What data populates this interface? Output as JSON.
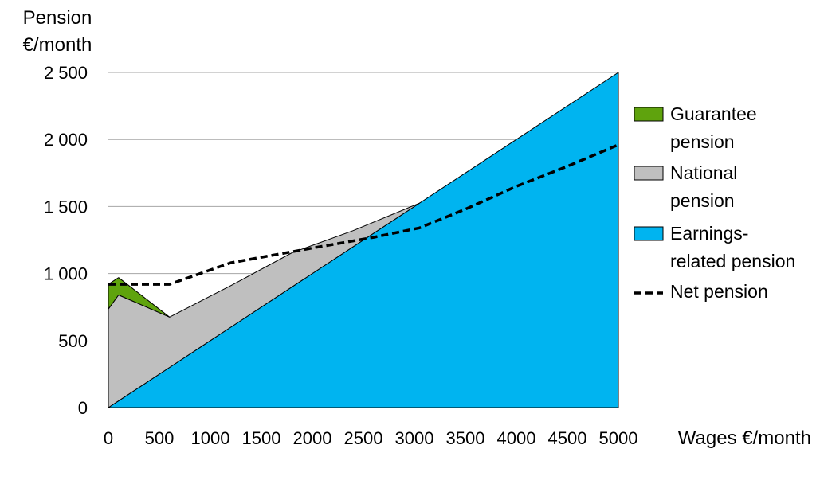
{
  "chart_data": {
    "type": "area",
    "title": "",
    "ylabel_lines": [
      "Pension",
      "€/month"
    ],
    "xlabel": "Wages €/month",
    "xlim": [
      0,
      5000
    ],
    "ylim": [
      0,
      2500
    ],
    "x_ticks": [
      0,
      500,
      1000,
      1500,
      2000,
      2500,
      3000,
      3500,
      4000,
      4500,
      5000
    ],
    "y_ticks": [
      0,
      500,
      1000,
      1500,
      2000,
      2500
    ],
    "y_tick_labels": [
      "0",
      "500",
      "1 000",
      "1 500",
      "2 000",
      "2 500"
    ],
    "grid": "horizontal",
    "legend_position": "right",
    "series": [
      {
        "name": "Earnings-related pension",
        "name_lines": [
          "Earnings-",
          "related pension"
        ],
        "kind": "stacked-area",
        "color": "#00B4F0",
        "x": [
          0,
          5000
        ],
        "y": [
          0,
          2500
        ]
      },
      {
        "name": "National pension",
        "name_lines": [
          "National",
          "pension"
        ],
        "kind": "stacked-area",
        "color": "#BFBFBF",
        "x": [
          0,
          100,
          600,
          1200,
          1800,
          2400,
          3050
        ],
        "y": [
          735,
          790,
          375,
          310,
          255,
          120,
          0
        ]
      },
      {
        "name": "Guarantee pension",
        "name_lines": [
          "Guarantee",
          "pension"
        ],
        "kind": "stacked-area",
        "color": "#5FA30D",
        "x": [
          0,
          100,
          600
        ],
        "y": [
          185,
          130,
          0
        ]
      },
      {
        "name": "Net pension",
        "name_lines": [
          "Net pension"
        ],
        "kind": "dashed-line",
        "color": "#000000",
        "x": [
          0,
          600,
          1200,
          2000,
          2600,
          3050,
          3500,
          4000,
          4500,
          5000
        ],
        "y": [
          920,
          920,
          1080,
          1190,
          1270,
          1340,
          1480,
          1650,
          1800,
          1960
        ]
      }
    ]
  }
}
